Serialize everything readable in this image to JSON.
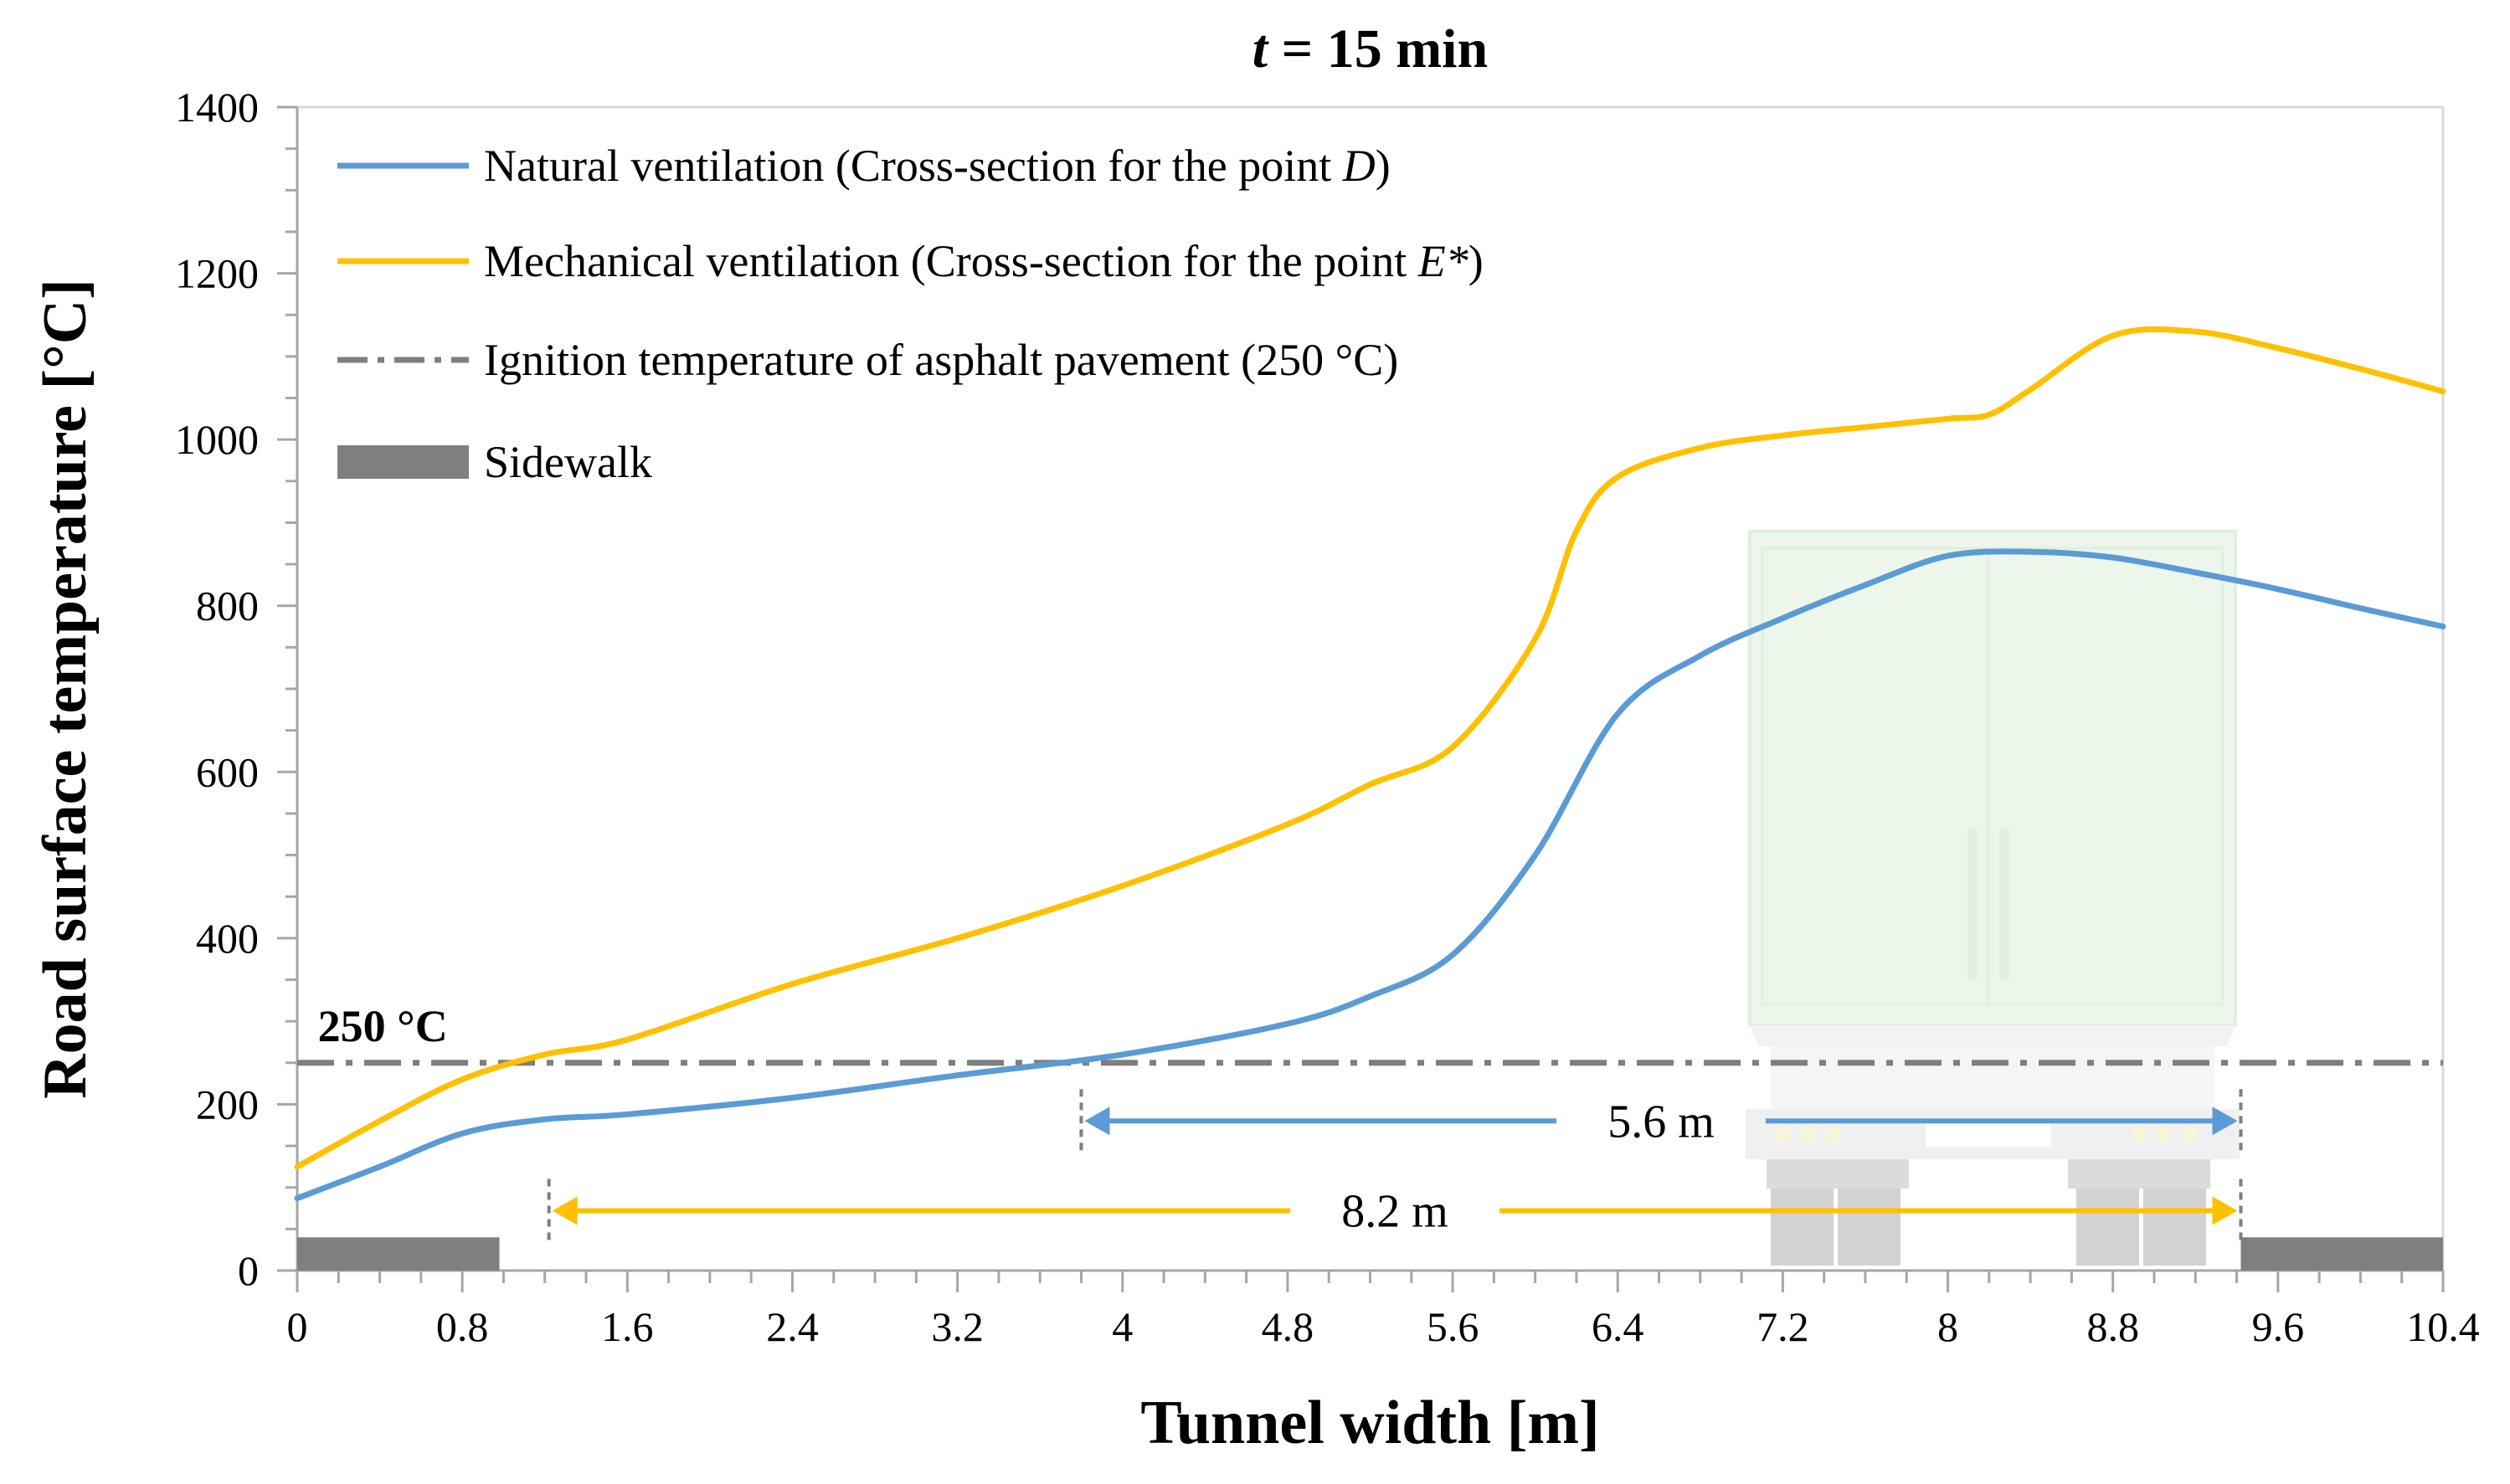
{
  "chart_data": {
    "type": "line",
    "title": {
      "prefix": "t",
      "rest": " = 15 min"
    },
    "xlabel": "Tunnel width [m]",
    "ylabel": "Road surface temperature [°C]",
    "xlim": [
      0,
      10.4
    ],
    "ylim": [
      0,
      1400
    ],
    "xticks": [
      "0",
      "0.8",
      "1.6",
      "2.4",
      "3.2",
      "4",
      "4.8",
      "5.6",
      "6.4",
      "7.2",
      "8",
      "8.8",
      "9.6",
      "10.4"
    ],
    "yticks": [
      "0",
      "200",
      "400",
      "600",
      "800",
      "1000",
      "1200",
      "1400"
    ],
    "series": [
      {
        "name": "Natural ventilation (Cross-section for the point D)",
        "legend": {
          "text": "Natural ventilation (Cross-section for the point ",
          "italic": "D",
          "tail": ")"
        },
        "color": "#5B9BD5",
        "x": [
          0,
          0.4,
          0.8,
          1.2,
          1.6,
          2.4,
          3.2,
          4.0,
          4.8,
          5.2,
          5.6,
          6.0,
          6.4,
          6.8,
          7.2,
          7.6,
          8.0,
          8.4,
          8.8,
          9.2,
          9.6,
          10.0,
          10.4
        ],
        "y": [
          87,
          125,
          165,
          182,
          188,
          208,
          235,
          260,
          297,
          330,
          380,
          500,
          670,
          740,
          785,
          825,
          860,
          865,
          858,
          840,
          820,
          797,
          775
        ]
      },
      {
        "name": "Mechanical ventilation (Cross-section for the point E*)",
        "legend": {
          "text": "Mechanical ventilation (Cross-section for the point ",
          "italic": "E*",
          "tail": ")"
        },
        "color": "#FFC000",
        "x": [
          0,
          0.4,
          0.8,
          1.2,
          1.6,
          2.4,
          3.2,
          4.0,
          4.8,
          5.2,
          5.6,
          6.0,
          6.2,
          6.4,
          6.8,
          7.2,
          7.6,
          8.0,
          8.2,
          8.4,
          8.8,
          9.2,
          9.6,
          10.0,
          10.4
        ],
        "y": [
          125,
          180,
          230,
          260,
          278,
          345,
          400,
          463,
          537,
          585,
          630,
          760,
          890,
          955,
          990,
          1005,
          1015,
          1025,
          1030,
          1060,
          1125,
          1130,
          1110,
          1085,
          1058
        ]
      }
    ],
    "threshold": {
      "name": "Ignition temperature of asphalt pavement (250 °C)",
      "value": 250,
      "label": "250 °C",
      "color": "#7F7F7F"
    },
    "sidewalk": {
      "name": "Sidewalk",
      "color": "#7F7F7F",
      "value": 40,
      "ranges": [
        [
          0,
          0.98
        ],
        [
          9.42,
          10.4
        ]
      ]
    },
    "annotations": [
      {
        "label": "5.6 m",
        "x_start": 3.8,
        "x_end": 9.42,
        "y": 180,
        "color": "#5B9BD5"
      },
      {
        "label": "8.2 m",
        "x_start": 1.22,
        "x_end": 9.42,
        "y": 72,
        "color": "#FFC000"
      }
    ],
    "legend_position": "top-left"
  }
}
